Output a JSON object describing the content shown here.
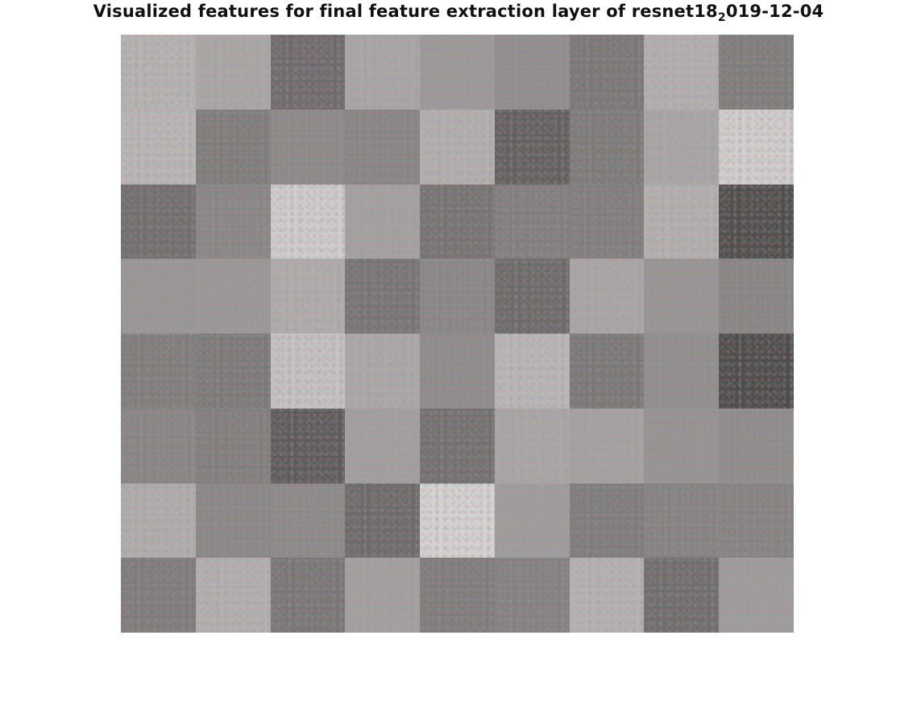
{
  "figure": {
    "title_main": "Visualized features for final feature extraction layer of resnet18",
    "title_sub": "2",
    "title_tail": "019-12-04"
  },
  "montage": {
    "rows": 8,
    "cols": 9,
    "tile_colors": [
      [
        "#b4b4b2",
        "#a8a9a7",
        "#6e6b6c",
        "#a7a7a7",
        "#9a9a99",
        "#8f8e8e",
        "#787877",
        "#b1b0b1",
        "#7d7e7b"
      ],
      [
        "#b7b7b6",
        "#7d7e7b",
        "#8a8a88",
        "#868584",
        "#b0b0af",
        "#626160",
        "#7b7c7a",
        "#a7a7a6",
        "#cfcfcd"
      ],
      [
        "#6f6f6e",
        "#878786",
        "#cecdcd",
        "#a2a2a1",
        "#747473",
        "#807f7f",
        "#7f7e7d",
        "#b2b1b0",
        "#4f504e"
      ],
      [
        "#979796",
        "#999897",
        "#aeadac",
        "#767576",
        "#878787",
        "#6b6b69",
        "#a8a7a6",
        "#959594",
        "#868684"
      ],
      [
        "#7e7e7c",
        "#7a7b79",
        "#c3c3c2",
        "#a9a9a8",
        "#8c8c8b",
        "#b8b7b8",
        "#787977",
        "#8f8f8e",
        "#4d4e4c"
      ],
      [
        "#878685",
        "#7f7f7d",
        "#5d5c5c",
        "#a1a0a0",
        "#717170",
        "#a8a7a6",
        "#a3a3a2",
        "#949493",
        "#8d8d8c"
      ],
      [
        "#aeaeac",
        "#888887",
        "#8a8a89",
        "#6b6b6a",
        "#d3d3d2",
        "#9d9d9c",
        "#7d7d7c",
        "#838382",
        "#848382"
      ],
      [
        "#7d7c7b",
        "#b1b1b0",
        "#777776",
        "#a2a1a0",
        "#7e7d7c",
        "#838282",
        "#b4b3b3",
        "#6e6e6d",
        "#9d9d9c"
      ]
    ]
  }
}
